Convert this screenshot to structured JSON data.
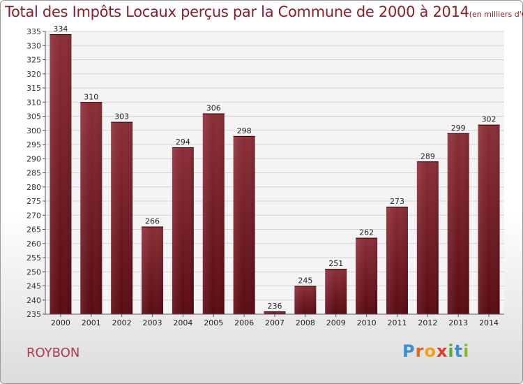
{
  "chart_data": {
    "type": "bar",
    "title": "Total des Impôts Locaux perçus par la Commune de 2000 à 2014",
    "subtitle": "(en milliers d'€)",
    "categories": [
      "2000",
      "2001",
      "2002",
      "2003",
      "2004",
      "2005",
      "2006",
      "2007",
      "2008",
      "2009",
      "2010",
      "2011",
      "2012",
      "2013",
      "2014"
    ],
    "values": [
      334,
      310,
      303,
      266,
      294,
      306,
      298,
      236,
      245,
      251,
      262,
      273,
      289,
      299,
      302
    ],
    "ylim": [
      235,
      335
    ],
    "ytick_step": 5,
    "xlabel": "",
    "ylabel": "",
    "grid": true,
    "bar_color_top": "#8b2e37",
    "bar_color_bottom": "#5a0a12"
  },
  "footer": {
    "commune": "ROYBON",
    "logo_letters": [
      {
        "ch": "P",
        "color": "#3a8fd0"
      },
      {
        "ch": "r",
        "color": "#e06a1b"
      },
      {
        "ch": "o",
        "color": "#f2a21b"
      },
      {
        "ch": "x",
        "color": "#e03a2a"
      },
      {
        "ch": "i",
        "color": "#5aa83a"
      },
      {
        "ch": "t",
        "color": "#3a8fd0"
      },
      {
        "ch": "i",
        "color": "#8ab82a"
      }
    ]
  }
}
